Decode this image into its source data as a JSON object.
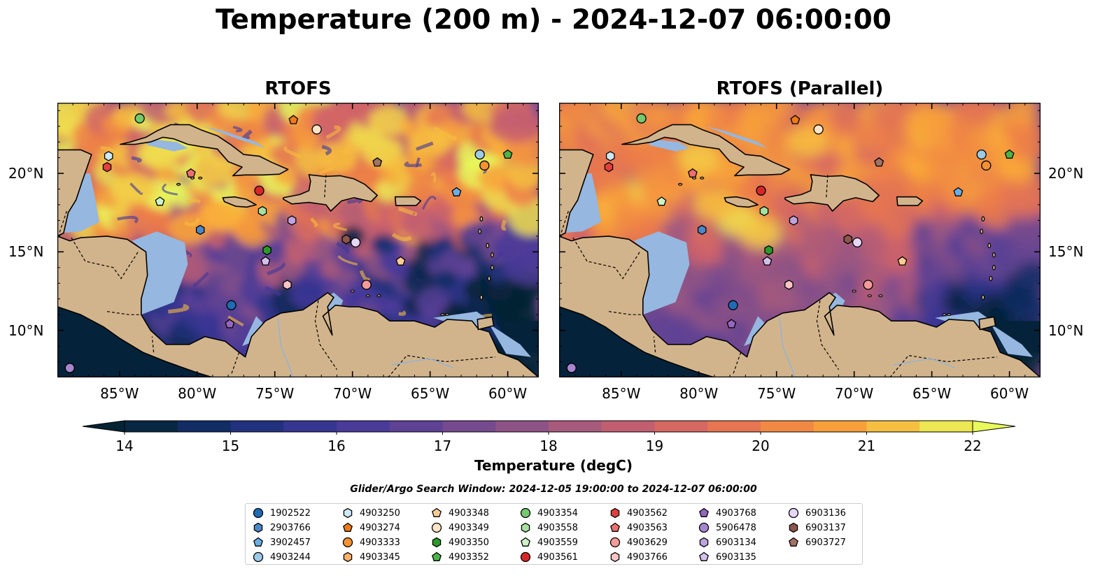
{
  "title": "Temperature (200 m) - 2024-12-07 06:00:00",
  "panels": [
    {
      "title": "RTOFS"
    },
    {
      "title": "RTOFS (Parallel)"
    }
  ],
  "map": {
    "lon_range": [
      -89,
      -58
    ],
    "lat_range": [
      7,
      24.5
    ],
    "lon_ticks": [
      "85°W",
      "80°W",
      "75°W",
      "70°W",
      "65°W",
      "60°W"
    ],
    "lat_ticks": [
      "20°N",
      "15°N",
      "10°N"
    ],
    "land_color": "#d2b48c",
    "shelf_color": "#95b7e0",
    "deep_cold_color": "#04223a"
  },
  "colorbar": {
    "label": "Temperature (degC)",
    "ticks": [
      "14",
      "15",
      "16",
      "17",
      "18",
      "19",
      "20",
      "21",
      "22"
    ],
    "range": [
      14,
      22
    ],
    "extend": "both",
    "colormap": "thermal"
  },
  "search_window": "Glider/Argo Search Window: 2024-12-05 19:00:00 to 2024-12-07 06:00:00",
  "legend": [
    {
      "id": "1902522",
      "marker": "circle",
      "color": "#1f6bb4"
    },
    {
      "id": "2903766",
      "marker": "hexagon",
      "color": "#4a88c8"
    },
    {
      "id": "3902457",
      "marker": "pentagon",
      "color": "#6aaee3"
    },
    {
      "id": "4903244",
      "marker": "circle",
      "color": "#9ecae9"
    },
    {
      "id": "4903250",
      "marker": "hexagon",
      "color": "#cfe8f6"
    },
    {
      "id": "4903274",
      "marker": "pentagon",
      "color": "#f07a1a"
    },
    {
      "id": "4903333",
      "marker": "circle",
      "color": "#f59232"
    },
    {
      "id": "4903345",
      "marker": "hexagon",
      "color": "#fdb06a"
    },
    {
      "id": "4903348",
      "marker": "pentagon",
      "color": "#fdcc95"
    },
    {
      "id": "4903349",
      "marker": "circle",
      "color": "#fde4c6"
    },
    {
      "id": "4903350",
      "marker": "hexagon",
      "color": "#2a9a2a"
    },
    {
      "id": "4903352",
      "marker": "pentagon",
      "color": "#4bb449"
    },
    {
      "id": "4903354",
      "marker": "circle",
      "color": "#74c96e"
    },
    {
      "id": "4903558",
      "marker": "hexagon",
      "color": "#a6e0a0"
    },
    {
      "id": "4903559",
      "marker": "pentagon",
      "color": "#cdf2c8"
    },
    {
      "id": "4903561",
      "marker": "circle",
      "color": "#d62728"
    },
    {
      "id": "4903562",
      "marker": "hexagon",
      "color": "#e43f3f"
    },
    {
      "id": "4903563",
      "marker": "pentagon",
      "color": "#ef6f70"
    },
    {
      "id": "4903629",
      "marker": "circle",
      "color": "#f59a9a"
    },
    {
      "id": "4903766",
      "marker": "hexagon",
      "color": "#fbc5c5"
    },
    {
      "id": "4903768",
      "marker": "pentagon",
      "color": "#9467bd"
    },
    {
      "id": "5906478",
      "marker": "circle",
      "color": "#a885cf"
    },
    {
      "id": "6903134",
      "marker": "hexagon",
      "color": "#bfa3de"
    },
    {
      "id": "6903135",
      "marker": "pentagon",
      "color": "#d4c0ec"
    },
    {
      "id": "6903136",
      "marker": "circle",
      "color": "#e6d7f6"
    },
    {
      "id": "6903137",
      "marker": "hexagon",
      "color": "#8c564b"
    },
    {
      "id": "6903727",
      "marker": "pentagon",
      "color": "#a27264"
    }
  ],
  "floats_on_map": [
    {
      "id": "4903354",
      "lon": -83.7,
      "lat": 23.5
    },
    {
      "id": "4903250",
      "lon": -85.7,
      "lat": 21.1
    },
    {
      "id": "4903562",
      "lon": -85.8,
      "lat": 20.4
    },
    {
      "id": "4903563",
      "lon": -80.4,
      "lat": 20.0
    },
    {
      "id": "4903274",
      "lon": -73.8,
      "lat": 23.4
    },
    {
      "id": "4903349",
      "lon": -72.3,
      "lat": 22.8
    },
    {
      "id": "6903727",
      "lon": -68.4,
      "lat": 20.7
    },
    {
      "id": "4903244",
      "lon": -61.8,
      "lat": 21.2
    },
    {
      "id": "4903333",
      "lon": -61.5,
      "lat": 20.5
    },
    {
      "id": "4903352",
      "lon": -60.0,
      "lat": 21.2
    },
    {
      "id": "4903561",
      "lon": -76.0,
      "lat": 18.9
    },
    {
      "id": "4903559",
      "lon": -82.4,
      "lat": 18.2
    },
    {
      "id": "4903558",
      "lon": -75.8,
      "lat": 17.6
    },
    {
      "id": "3902457",
      "lon": -63.3,
      "lat": 18.8
    },
    {
      "id": "2903766",
      "lon": -79.8,
      "lat": 16.4
    },
    {
      "id": "6903134",
      "lon": -73.9,
      "lat": 17.0
    },
    {
      "id": "6903137",
      "lon": -70.4,
      "lat": 15.8
    },
    {
      "id": "6903136",
      "lon": -69.8,
      "lat": 15.6
    },
    {
      "id": "4903350",
      "lon": -75.5,
      "lat": 15.1
    },
    {
      "id": "6903135",
      "lon": -75.6,
      "lat": 14.4
    },
    {
      "id": "4903348",
      "lon": -66.9,
      "lat": 14.4
    },
    {
      "id": "4903766",
      "lon": -74.2,
      "lat": 12.9
    },
    {
      "id": "4903629",
      "lon": -69.1,
      "lat": 12.9
    },
    {
      "id": "1902522",
      "lon": -77.8,
      "lat": 11.6
    },
    {
      "id": "4903768",
      "lon": -77.9,
      "lat": 10.4
    },
    {
      "id": "5906478",
      "lon": -88.2,
      "lat": 7.6
    }
  ]
}
